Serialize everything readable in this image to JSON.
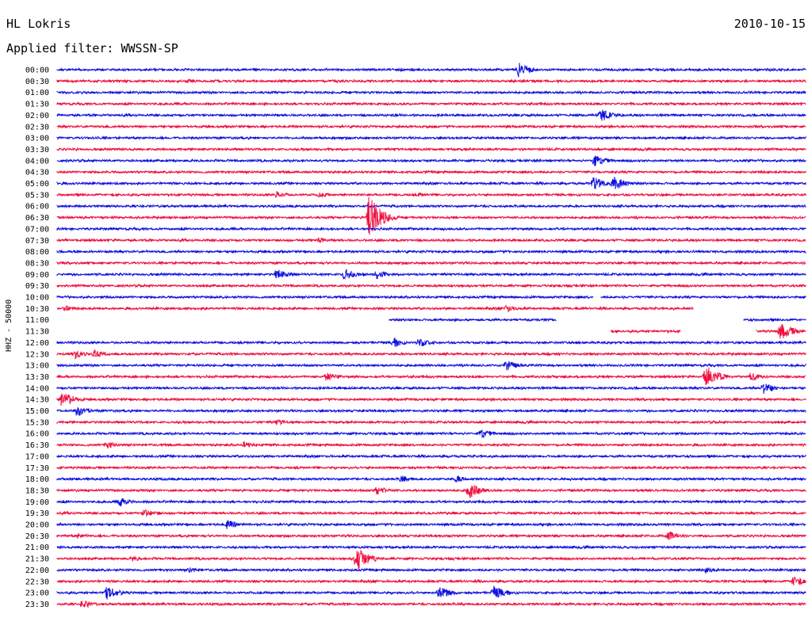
{
  "header": {
    "station": "HL Lokris",
    "date": "2010-10-15",
    "filter": "Applied filter: WWSSN-SP"
  },
  "scale_label": "HHZ - 50000",
  "colors": {
    "trace_a": "#1010e0",
    "trace_b": "#ee1040"
  },
  "chart_data": {
    "type": "line",
    "title": "HL Lokris",
    "subtitle": "Applied filter: WWSSN-SP",
    "ylabel": "HHZ - 50000",
    "rows": [
      "00:00",
      "00:30",
      "01:00",
      "01:30",
      "02:00",
      "02:30",
      "03:00",
      "03:30",
      "04:00",
      "04:30",
      "05:00",
      "05:30",
      "06:00",
      "06:30",
      "07:00",
      "07:30",
      "08:00",
      "08:30",
      "09:00",
      "09:30",
      "10:00",
      "10:30",
      "11:00",
      "11:30",
      "12:00",
      "12:30",
      "13:00",
      "13:30",
      "14:00",
      "14:30",
      "15:00",
      "15:30",
      "16:00",
      "16:30",
      "17:00",
      "17:30",
      "18:00",
      "18:30",
      "19:00",
      "19:30",
      "20:00",
      "20:30",
      "21:00",
      "21:30",
      "22:00",
      "22:30",
      "23:00",
      "23:30"
    ],
    "series_colors": [
      "blue",
      "red"
    ],
    "events": [
      {
        "row": "00:00",
        "minute": 18.5,
        "amplitude": 10
      },
      {
        "row": "00:30",
        "minute": 5.2,
        "amplitude": 3
      },
      {
        "row": "02:00",
        "minute": 21.8,
        "amplitude": 10
      },
      {
        "row": "02:00",
        "minute": 13.5,
        "amplitude": 2
      },
      {
        "row": "03:30",
        "minute": 13.5,
        "amplitude": 2
      },
      {
        "row": "04:00",
        "minute": 14.8,
        "amplitude": 2
      },
      {
        "row": "04:00",
        "minute": 21.5,
        "amplitude": 8
      },
      {
        "row": "05:00",
        "minute": 21.5,
        "amplitude": 9
      },
      {
        "row": "05:00",
        "minute": 22.3,
        "amplitude": 10
      },
      {
        "row": "05:30",
        "minute": 8.8,
        "amplitude": 5
      },
      {
        "row": "05:30",
        "minute": 10.5,
        "amplitude": 4
      },
      {
        "row": "05:30",
        "minute": 14.5,
        "amplitude": 3
      },
      {
        "row": "06:30",
        "minute": 12.5,
        "amplitude": 30
      },
      {
        "row": "07:30",
        "minute": 10.5,
        "amplitude": 4
      },
      {
        "row": "09:00",
        "minute": 8.8,
        "amplitude": 8
      },
      {
        "row": "09:00",
        "minute": 11.5,
        "amplitude": 8
      },
      {
        "row": "09:00",
        "minute": 12.8,
        "amplitude": 6
      },
      {
        "row": "10:30",
        "minute": 0.3,
        "amplitude": 4
      },
      {
        "row": "10:30",
        "minute": 18.0,
        "amplitude": 5
      },
      {
        "row": "11:30",
        "minute": 29.0,
        "amplitude": 12
      },
      {
        "row": "12:00",
        "minute": 13.5,
        "amplitude": 6
      },
      {
        "row": "12:00",
        "minute": 14.5,
        "amplitude": 6
      },
      {
        "row": "12:30",
        "minute": 0.7,
        "amplitude": 7
      },
      {
        "row": "12:30",
        "minute": 1.5,
        "amplitude": 5
      },
      {
        "row": "13:00",
        "minute": 18.0,
        "amplitude": 7
      },
      {
        "row": "13:30",
        "minute": 10.8,
        "amplitude": 6
      },
      {
        "row": "13:30",
        "minute": 26.0,
        "amplitude": 16
      },
      {
        "row": "13:30",
        "minute": 27.8,
        "amplitude": 6
      },
      {
        "row": "14:00",
        "minute": 28.3,
        "amplitude": 8
      },
      {
        "row": "14:30",
        "minute": 0.2,
        "amplitude": 12
      },
      {
        "row": "15:00",
        "minute": 0.8,
        "amplitude": 8
      },
      {
        "row": "15:30",
        "minute": 8.8,
        "amplitude": 4
      },
      {
        "row": "16:00",
        "minute": 17.0,
        "amplitude": 6
      },
      {
        "row": "16:30",
        "minute": 2.0,
        "amplitude": 5
      },
      {
        "row": "16:30",
        "minute": 7.5,
        "amplitude": 5
      },
      {
        "row": "18:00",
        "minute": 13.8,
        "amplitude": 5
      },
      {
        "row": "18:00",
        "minute": 16.0,
        "amplitude": 5
      },
      {
        "row": "18:30",
        "minute": 12.8,
        "amplitude": 6
      },
      {
        "row": "18:30",
        "minute": 16.5,
        "amplitude": 11
      },
      {
        "row": "19:00",
        "minute": 2.5,
        "amplitude": 6
      },
      {
        "row": "19:30",
        "minute": 3.5,
        "amplitude": 6
      },
      {
        "row": "20:00",
        "minute": 6.8,
        "amplitude": 6
      },
      {
        "row": "20:30",
        "minute": 0.8,
        "amplitude": 4
      },
      {
        "row": "20:30",
        "minute": 24.5,
        "amplitude": 6
      },
      {
        "row": "21:30",
        "minute": 12.0,
        "amplitude": 17
      },
      {
        "row": "21:30",
        "minute": 3.0,
        "amplitude": 4
      },
      {
        "row": "22:00",
        "minute": 5.3,
        "amplitude": 4
      },
      {
        "row": "22:00",
        "minute": 26.0,
        "amplitude": 4
      },
      {
        "row": "22:30",
        "minute": 29.5,
        "amplitude": 7
      },
      {
        "row": "23:00",
        "minute": 2.0,
        "amplitude": 9
      },
      {
        "row": "23:00",
        "minute": 15.3,
        "amplitude": 9
      },
      {
        "row": "23:00",
        "minute": 17.5,
        "amplitude": 9
      },
      {
        "row": "23:30",
        "minute": 1.0,
        "amplitude": 6
      }
    ],
    "gaps": [
      {
        "row": "10:00",
        "from_minute": 21.5,
        "to_minute": 21.8
      },
      {
        "row": "10:30",
        "from_minute": 25.5,
        "to_minute": 30
      },
      {
        "row": "11:00",
        "from_minute": 0,
        "to_minute": 13.3
      },
      {
        "row": "11:00",
        "from_minute": 20.0,
        "to_minute": 27.5
      },
      {
        "row": "11:30",
        "from_minute": 0,
        "to_minute": 22.2
      },
      {
        "row": "11:30",
        "from_minute": 25.0,
        "to_minute": 28.0
      }
    ]
  }
}
